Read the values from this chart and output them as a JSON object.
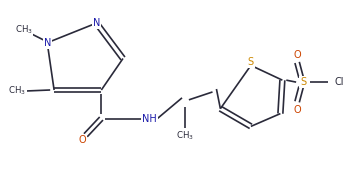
{
  "bg_color": "#ffffff",
  "line_color": "#2a2a3a",
  "atom_colors": {
    "N": "#1a1aaa",
    "O": "#cc4400",
    "S": "#cc8800",
    "Cl": "#2a2a3a",
    "C": "#2a2a3a"
  },
  "figsize": [
    3.44,
    1.79
  ],
  "dpi": 100,
  "lw": 1.2
}
